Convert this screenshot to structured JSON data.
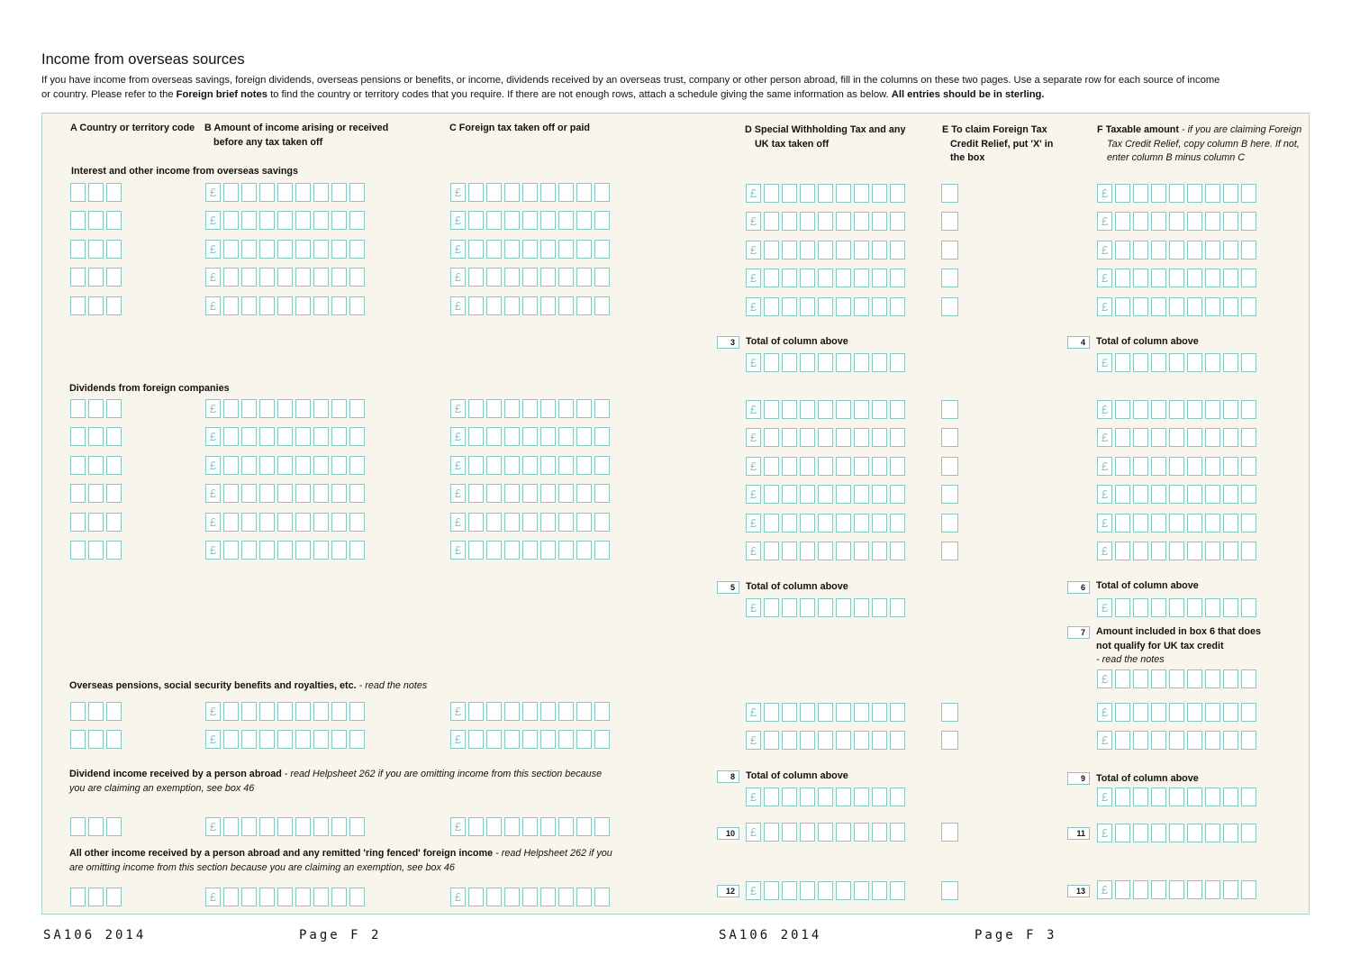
{
  "page": {
    "title": "Income from overseas sources",
    "intro_1": "If you have income from overseas savings, foreign dividends, overseas pensions or benefits, or income, dividends received by an overseas trust, company or other person abroad, fill in the columns on these two pages. Use a separate row for each source of income or country. Please refer to the ",
    "intro_bold_1": "Foreign brief notes",
    "intro_2": " to find the country or territory codes that you require. If there are not enough rows, attach a schedule giving the same information as below. ",
    "intro_bold_2": "All entries should be in sterling."
  },
  "columns": {
    "a": "A Country or territory code",
    "b": "B Amount of income arising or received before any tax taken off",
    "c": "C Foreign tax taken off or paid",
    "d": "D Special Withholding Tax and any UK tax taken off",
    "e": "E To claim Foreign Tax Credit Relief, put 'X' in the box",
    "f_bold": "F Taxable amount",
    "f_italic": " - if you are claiming Foreign Tax Credit Relief, copy column B here. If not, enter column B minus column C"
  },
  "sections": {
    "interest": "Interest and other income from overseas savings",
    "dividends": "Dividends from foreign companies",
    "pensions_bold": "Overseas pensions, social security benefits and royalties, etc.",
    "pensions_italic": " - read the notes",
    "abroad_bold": "Dividend income received by a person abroad",
    "abroad_italic": " - read Helpsheet 262 if you are omitting income from this section because you are claiming an exemption, see box 46",
    "other_bold": "All other income received by a person abroad and any remitted 'ring fenced' foreign income",
    "other_italic": " - read Helpsheet 262 if you are omitting income from this section because you are claiming an exemption, see box 46"
  },
  "totals": {
    "label": "Total of column above",
    "box7_bold": "Amount included in box 6 that does not qualify for UK tax credit",
    "box7_italic": "- read the notes"
  },
  "box_numbers": {
    "b3": "3",
    "b4": "4",
    "b5": "5",
    "b6": "6",
    "b7": "7",
    "b8": "8",
    "b9": "9",
    "b10": "10",
    "b11": "11",
    "b12": "12",
    "b13": "13"
  },
  "currency_symbol": "£",
  "footer": {
    "left_code": "SA106 2014",
    "left_page": "Page F 2",
    "right_code": "SA106 2014",
    "right_page": "Page F 3"
  },
  "colors": {
    "panel_background": "#f8f6ec",
    "box_border": "#8cc6c3"
  }
}
